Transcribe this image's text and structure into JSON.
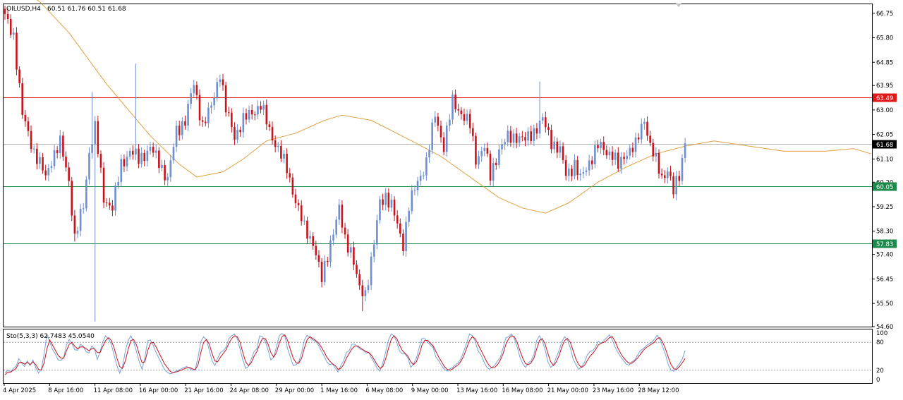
{
  "header": {
    "symbol_tf": "OILUSD,H4",
    "ohlc": "60.51 61.76 60.51 61.68"
  },
  "stoch_header": "Sto(5,3,3) 62.7483 45.0540",
  "colors": {
    "bull": "#6f8fd0",
    "bear": "#c8141c",
    "ma": "#e0a040",
    "resistance": "#e11818",
    "support": "#1c8a4a",
    "current": "#b8b8b8",
    "stoch_main": "#7aa0d8",
    "stoch_signal": "#c8141c"
  },
  "price_axis": {
    "ticks": [
      "66.75",
      "65.80",
      "64.85",
      "63.95",
      "63.00",
      "62.05",
      "61.10",
      "60.20",
      "59.25",
      "58.30",
      "57.40",
      "56.45",
      "55.50",
      "54.60"
    ]
  },
  "stoch_axis": {
    "ticks": [
      "100",
      "80",
      "20",
      "0"
    ]
  },
  "time_axis": {
    "labels": [
      "4 Apr 2025",
      "8 Apr 16:00",
      "11 Apr 08:00",
      "16 Apr 00:00",
      "21 Apr 16:00",
      "24 Apr 08:00",
      "29 Apr 00:00",
      "1 May 16:00",
      "6 May 08:00",
      "9 May 00:00",
      "13 May 16:00",
      "16 May 08:00",
      "21 May 00:00",
      "23 May 16:00",
      "28 May 12:00"
    ]
  },
  "levels": [
    {
      "name": "resistance",
      "label": "63.49",
      "value": 63.49
    },
    {
      "name": "current",
      "label": "61.68",
      "value": 61.68
    },
    {
      "name": "support-1",
      "label": "60.05",
      "value": 60.05
    },
    {
      "name": "support-2",
      "label": "57.83",
      "value": 57.83
    }
  ],
  "chart_data": [
    {
      "type": "candlestick",
      "title": "OILUSD,H4",
      "ylim": [
        54.6,
        67.1
      ],
      "anchors": [
        [
          0,
          66.6
        ],
        [
          3,
          65.9
        ],
        [
          6,
          62.8
        ],
        [
          10,
          61.4
        ],
        [
          14,
          60.4
        ],
        [
          16,
          61.1
        ],
        [
          19,
          61.7
        ],
        [
          22,
          60.3
        ],
        [
          24,
          58.0
        ],
        [
          27,
          59.3
        ],
        [
          29,
          61.4
        ],
        [
          31,
          62.3
        ],
        [
          34,
          59.6
        ],
        [
          37,
          59.2
        ],
        [
          40,
          60.9
        ],
        [
          43,
          61.4
        ],
        [
          46,
          61.1
        ],
        [
          50,
          61.5
        ],
        [
          53,
          61.0
        ],
        [
          56,
          60.3
        ],
        [
          59,
          62.2
        ],
        [
          62,
          62.6
        ],
        [
          65,
          64.0
        ],
        [
          68,
          62.4
        ],
        [
          71,
          63.1
        ],
        [
          74,
          64.5
        ],
        [
          76,
          63.0
        ],
        [
          79,
          62.0
        ],
        [
          82,
          62.6
        ],
        [
          85,
          62.9
        ],
        [
          88,
          63.2
        ],
        [
          91,
          62.2
        ],
        [
          94,
          61.5
        ],
        [
          97,
          60.7
        ],
        [
          100,
          59.5
        ],
        [
          103,
          58.4
        ],
        [
          106,
          57.9
        ],
        [
          109,
          56.4
        ],
        [
          112,
          57.9
        ],
        [
          115,
          59.1
        ],
        [
          117,
          58.0
        ],
        [
          119,
          57.6
        ],
        [
          122,
          56.0
        ],
        [
          124,
          55.9
        ],
        [
          127,
          57.8
        ],
        [
          129,
          59.4
        ],
        [
          131,
          59.7
        ],
        [
          133,
          59.3
        ],
        [
          135,
          58.5
        ],
        [
          137,
          57.8
        ],
        [
          139,
          59.3
        ],
        [
          142,
          60.2
        ],
        [
          145,
          61.0
        ],
        [
          148,
          62.8
        ],
        [
          151,
          61.6
        ],
        [
          154,
          63.3
        ],
        [
          157,
          62.9
        ],
        [
          160,
          62.4
        ],
        [
          162,
          61.1
        ],
        [
          165,
          61.6
        ],
        [
          167,
          60.4
        ],
        [
          170,
          61.5
        ],
        [
          173,
          61.9
        ],
        [
          176,
          62.0
        ],
        [
          179,
          61.8
        ],
        [
          182,
          62.2
        ],
        [
          185,
          62.6
        ],
        [
          188,
          61.8
        ],
        [
          191,
          61.4
        ],
        [
          193,
          60.5
        ],
        [
          196,
          60.9
        ],
        [
          198,
          60.3
        ],
        [
          201,
          61.0
        ],
        [
          204,
          61.6
        ],
        [
          207,
          61.4
        ],
        [
          209,
          61.3
        ],
        [
          211,
          60.8
        ],
        [
          214,
          61.4
        ],
        [
          217,
          61.6
        ],
        [
          220,
          62.7
        ],
        [
          222,
          61.6
        ],
        [
          224,
          61.0
        ],
        [
          226,
          60.4
        ],
        [
          228,
          60.7
        ],
        [
          230,
          59.8
        ],
        [
          232,
          60.5
        ],
        [
          234,
          61.7
        ]
      ],
      "wick_events": [
        {
          "index": 24,
          "low": 57.9
        },
        {
          "index": 30,
          "high": 63.7
        },
        {
          "index": 31,
          "low": 54.8
        },
        {
          "index": 45,
          "high": 64.8
        },
        {
          "index": 123,
          "low": 55.2
        },
        {
          "index": 184,
          "high": 64.1
        },
        {
          "index": 231,
          "low": 59.5
        }
      ],
      "moving_average": [
        [
          0,
          68.0
        ],
        [
          12,
          67.2
        ],
        [
          22,
          66.0
        ],
        [
          35,
          64.0
        ],
        [
          50,
          62.0
        ],
        [
          60,
          60.9
        ],
        [
          66,
          60.4
        ],
        [
          75,
          60.6
        ],
        [
          82,
          61.1
        ],
        [
          90,
          61.8
        ],
        [
          100,
          62.1
        ],
        [
          110,
          62.6
        ],
        [
          116,
          62.8
        ],
        [
          126,
          62.6
        ],
        [
          140,
          61.8
        ],
        [
          150,
          61.2
        ],
        [
          160,
          60.4
        ],
        [
          170,
          59.6
        ],
        [
          178,
          59.2
        ],
        [
          186,
          59.0
        ],
        [
          194,
          59.4
        ],
        [
          204,
          60.2
        ],
        [
          214,
          60.8
        ],
        [
          224,
          61.3
        ],
        [
          234,
          61.6
        ],
        [
          244,
          61.8
        ],
        [
          256,
          61.6
        ],
        [
          268,
          61.4
        ],
        [
          282,
          61.4
        ],
        [
          292,
          61.5
        ],
        [
          298,
          61.3
        ]
      ]
    },
    {
      "type": "line",
      "title": "Sto(5,3,3)",
      "ylim": [
        0,
        100
      ],
      "reference_lines": [
        80,
        20
      ],
      "x_range": [
        0,
        234
      ],
      "series": [
        {
          "name": "main",
          "values": [
            14,
            20,
            16,
            24,
            29,
            45,
            35,
            28,
            40,
            30,
            42,
            26,
            14,
            22,
            55,
            97,
            81,
            65,
            55,
            42,
            41,
            47,
            75,
            86,
            76,
            64,
            63,
            76,
            71,
            60,
            57,
            72,
            66,
            43,
            60,
            82,
            94,
            87,
            76,
            52,
            30,
            14,
            28,
            60,
            84,
            94,
            80,
            60,
            38,
            22,
            48,
            83,
            85,
            73,
            58,
            46,
            34,
            22,
            16,
            12,
            14,
            18,
            20,
            23,
            26,
            28,
            24,
            20,
            21,
            48,
            82,
            92,
            85,
            63,
            40,
            30,
            46,
            58,
            62,
            70,
            88,
            94,
            98,
            88,
            66,
            42,
            24,
            28,
            44,
            60,
            66,
            94,
            92,
            82,
            64,
            42,
            48,
            70,
            94,
            99,
            93,
            66,
            48,
            30,
            32,
            38,
            58,
            85,
            95,
            90,
            85,
            82,
            74,
            62,
            51,
            38,
            32,
            34,
            25,
            16,
            30,
            40,
            58,
            62,
            76,
            76,
            70,
            65,
            63,
            57,
            58,
            46,
            36,
            24,
            18,
            36,
            58,
            84,
            98,
            94,
            80,
            61,
            55,
            55,
            46,
            26,
            34,
            46,
            68,
            88,
            88,
            80,
            74,
            68,
            48,
            40,
            30,
            22,
            18,
            23,
            26,
            32,
            36,
            46,
            62,
            79,
            98,
            94,
            82,
            62,
            54,
            40,
            28,
            22,
            26,
            30,
            40,
            48,
            68,
            90,
            92,
            98,
            88,
            70,
            48,
            34,
            26,
            36,
            40,
            54,
            84,
            94,
            82,
            64,
            38,
            26,
            32,
            48,
            62,
            82,
            92,
            85,
            68,
            44,
            32,
            22,
            28,
            36,
            52,
            60,
            62,
            70,
            82,
            78,
            84,
            90,
            96,
            85,
            70,
            58,
            49,
            41,
            33,
            31,
            38,
            42,
            52,
            62,
            66,
            72,
            76,
            80,
            86,
            95,
            86,
            70,
            54,
            32,
            20,
            18,
            26,
            34,
            44,
            62
          ]
        },
        {
          "name": "signal",
          "values": [
            10,
            16,
            16,
            20,
            24,
            36,
            37,
            33,
            37,
            32,
            38,
            32,
            22,
            20,
            36,
            66,
            85,
            74,
            63,
            52,
            46,
            46,
            62,
            76,
            80,
            71,
            66,
            70,
            70,
            66,
            62,
            66,
            66,
            58,
            58,
            72,
            84,
            90,
            84,
            68,
            46,
            28,
            24,
            40,
            64,
            84,
            86,
            74,
            54,
            36,
            38,
            62,
            78,
            80,
            70,
            58,
            46,
            34,
            26,
            18,
            14,
            16,
            18,
            20,
            23,
            25,
            26,
            23,
            21,
            32,
            58,
            80,
            86,
            76,
            56,
            40,
            38,
            48,
            56,
            64,
            78,
            88,
            94,
            92,
            80,
            58,
            38,
            30,
            36,
            50,
            60,
            76,
            88,
            88,
            76,
            58,
            48,
            58,
            78,
            92,
            96,
            84,
            64,
            46,
            36,
            35,
            46,
            68,
            86,
            92,
            88,
            84,
            79,
            70,
            60,
            48,
            40,
            34,
            30,
            22,
            24,
            32,
            46,
            56,
            66,
            72,
            72,
            68,
            64,
            60,
            58,
            52,
            42,
            32,
            24,
            28,
            44,
            66,
            86,
            94,
            88,
            74,
            62,
            56,
            50,
            38,
            32,
            38,
            54,
            74,
            84,
            84,
            78,
            72,
            60,
            48,
            38,
            28,
            22,
            20,
            23,
            28,
            32,
            40,
            52,
            68,
            84,
            92,
            88,
            76,
            64,
            52,
            40,
            30,
            25,
            26,
            32,
            42,
            56,
            76,
            88,
            94,
            92,
            80,
            62,
            46,
            34,
            32,
            36,
            46,
            66,
            84,
            88,
            76,
            56,
            38,
            30,
            38,
            52,
            70,
            84,
            88,
            80,
            62,
            44,
            32,
            26,
            30,
            40,
            50,
            56,
            64,
            74,
            78,
            80,
            84,
            90,
            92,
            82,
            68,
            56,
            47,
            40,
            35,
            35,
            40,
            46,
            54,
            62,
            68,
            72,
            76,
            80,
            88,
            90,
            80,
            66,
            48,
            32,
            23,
            22,
            28,
            36,
            45
          ]
        }
      ]
    }
  ]
}
